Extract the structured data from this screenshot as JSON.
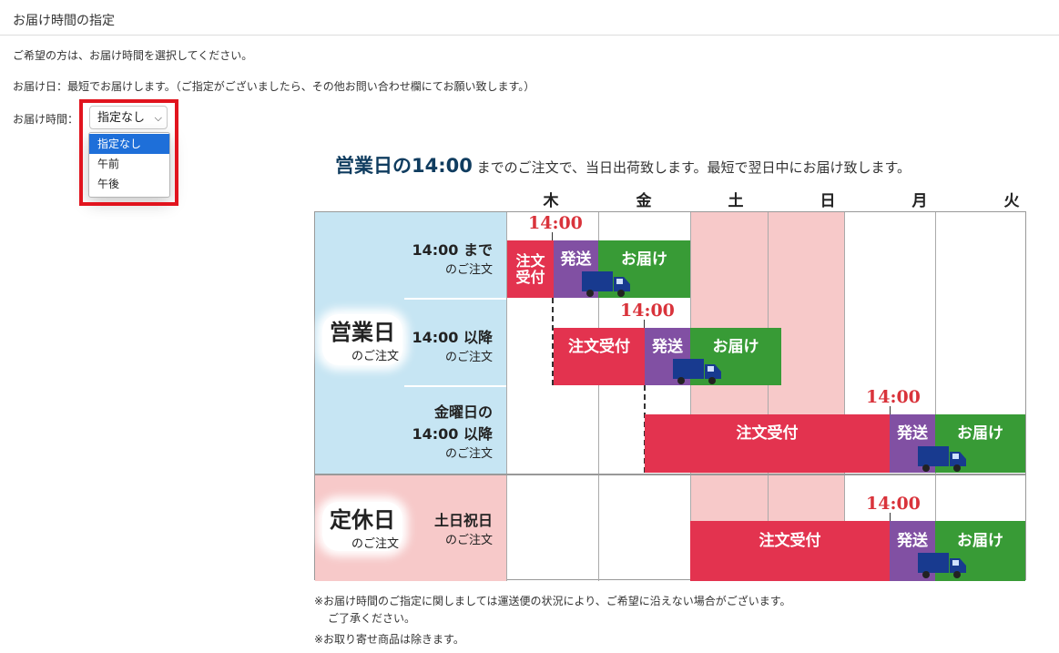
{
  "section_title": "お届け時間の指定",
  "lines": {
    "intro": "ご希望の方は、お届け時間を選択してください。",
    "delivery_day": "お届け日：最短でお届けします。（ご指定がございましたら、その他お問い合わせ欄にてお願い致します。）",
    "delivery_time_label": "お届け時間："
  },
  "select": {
    "value": "指定なし",
    "options": [
      "指定なし",
      "午前",
      "午後"
    ]
  },
  "banner": {
    "strong": "営業日の14:00",
    "rest": " までのご注文で、当日出荷致します。最短で翌日中にお届け致します。"
  },
  "days": [
    "木",
    "金",
    "土",
    "日",
    "月",
    "火"
  ],
  "row_groups": {
    "business": {
      "main": "営業日",
      "sub": "のご注文"
    },
    "holiday": {
      "main": "定休日",
      "sub": "のご注文"
    }
  },
  "rows": [
    {
      "main": "14:00 まで",
      "sub": "のご注文"
    },
    {
      "main": "14:00 以降",
      "sub": "のご注文"
    },
    {
      "main1": "金曜日の",
      "main2": "14:00 以降",
      "sub": "のご注文"
    },
    {
      "main": "土日祝日",
      "sub": "のご注文"
    }
  ],
  "bars": {
    "order_short1": "注文",
    "order_short2": "受付",
    "order": "注文受付",
    "ship": "発送",
    "deliver": "お届け"
  },
  "time_marker": "14:00",
  "colors": {
    "order": "#e3334f",
    "ship": "#8150a3",
    "deliver": "#389b36",
    "time": "#d9333b",
    "weekend": "#f7c9c9",
    "business_bg": "#c6e5f3",
    "highlight_box": "#e1141e"
  },
  "notes": {
    "n1": "※お届け時間のご指定に関しましては運送便の状況により、ご希望に沿えない場合がございます。",
    "n1b": "ご了承ください。",
    "n2": "※お取り寄せ商品は除きます。"
  }
}
